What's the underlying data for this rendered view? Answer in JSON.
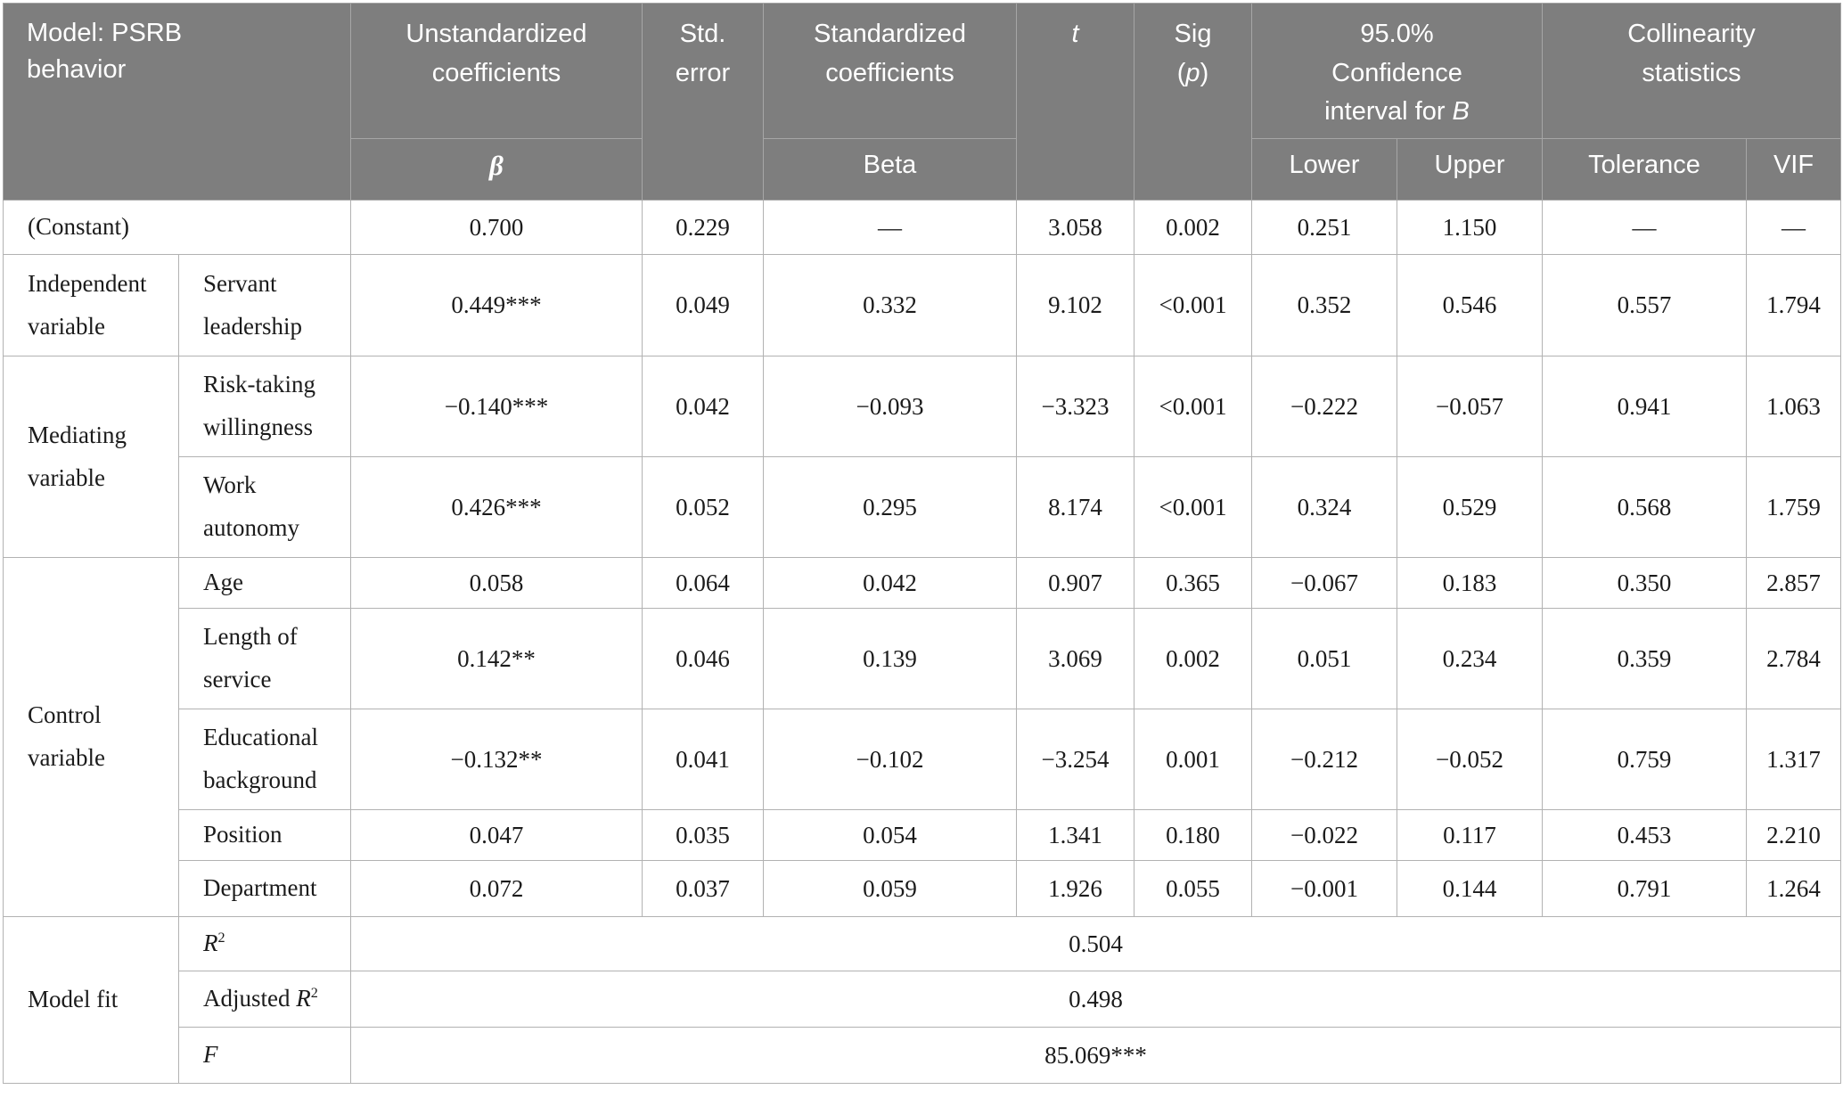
{
  "table": {
    "header": {
      "model": "Model: PSRB behavior",
      "unstandardized": "Unstandardized coefficients",
      "std_error": "Std. error",
      "standardized": "Standardized coefficients",
      "t_parts": [
        {
          "t": "t",
          "i": true
        }
      ],
      "sig_parts": [
        {
          "t": "Sig ("
        },
        {
          "t": "p",
          "i": true
        },
        {
          "t": ")"
        }
      ],
      "ci_parts": [
        {
          "t": "95.0% Confidence interval for "
        },
        {
          "t": "B",
          "i": true
        }
      ],
      "collinearity": "Collinearity statistics",
      "beta_symbol_parts": [
        {
          "t": "β",
          "i": true
        }
      ],
      "beta_word": "Beta",
      "lower": "Lower",
      "upper": "Upper",
      "tolerance": "Tolerance",
      "vif": "VIF"
    },
    "groups": {
      "independent": "Independent variable",
      "mediating": "Mediating variable",
      "control": "Control variable",
      "model_fit": "Model fit"
    },
    "rows": {
      "constant": {
        "label": "(Constant)",
        "values": [
          "0.700",
          "0.229",
          "—",
          "3.058",
          "0.002",
          "0.251",
          "1.150",
          "—",
          "—"
        ]
      },
      "servant_leadership": {
        "label": "Servant leadership",
        "values": [
          "0.449***",
          "0.049",
          "0.332",
          "9.102",
          "<0.001",
          "0.352",
          "0.546",
          "0.557",
          "1.794"
        ]
      },
      "risk_taking": {
        "label": "Risk-taking willingness",
        "values": [
          "−0.140***",
          "0.042",
          "−0.093",
          "−3.323",
          "<0.001",
          "−0.222",
          "−0.057",
          "0.941",
          "1.063"
        ]
      },
      "work_autonomy": {
        "label": "Work autonomy",
        "values": [
          "0.426***",
          "0.052",
          "0.295",
          "8.174",
          "<0.001",
          "0.324",
          "0.529",
          "0.568",
          "1.759"
        ]
      },
      "age": {
        "label": "Age",
        "values": [
          "0.058",
          "0.064",
          "0.042",
          "0.907",
          "0.365",
          "−0.067",
          "0.183",
          "0.350",
          "2.857"
        ]
      },
      "length_of_service": {
        "label": "Length of service",
        "values": [
          "0.142**",
          "0.046",
          "0.139",
          "3.069",
          "0.002",
          "0.051",
          "0.234",
          "0.359",
          "2.784"
        ]
      },
      "educational_background": {
        "label": "Educational background",
        "values": [
          "−0.132**",
          "0.041",
          "−0.102",
          "−3.254",
          "0.001",
          "−0.212",
          "−0.052",
          "0.759",
          "1.317"
        ]
      },
      "position": {
        "label": "Position",
        "values": [
          "0.047",
          "0.035",
          "0.054",
          "1.341",
          "0.180",
          "−0.022",
          "0.117",
          "0.453",
          "2.210"
        ]
      },
      "department": {
        "label": "Department",
        "values": [
          "0.072",
          "0.037",
          "0.059",
          "1.926",
          "0.055",
          "−0.001",
          "0.144",
          "0.791",
          "1.264"
        ]
      },
      "r_squared": {
        "label_parts": [
          {
            "t": "R",
            "i": true
          },
          {
            "t": "2",
            "sup": true
          }
        ],
        "value": "0.504"
      },
      "adjusted_r_squared": {
        "label_parts": [
          {
            "t": "Adjusted "
          },
          {
            "t": "R",
            "i": true
          },
          {
            "t": "2",
            "sup": true
          }
        ],
        "value": "0.498"
      },
      "f_statistic": {
        "label_parts": [
          {
            "t": "F",
            "i": true
          }
        ],
        "value": "85.069***"
      }
    },
    "colors": {
      "header_bg": "#7e7e7e",
      "header_text": "#ffffff",
      "body_text": "#1b1b1b",
      "border": "#b2b2b2"
    }
  }
}
